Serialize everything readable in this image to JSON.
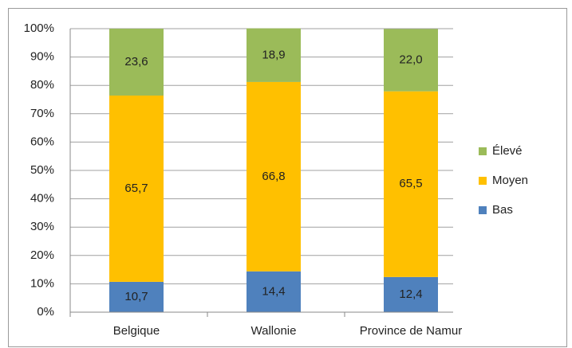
{
  "chart_data": {
    "type": "bar",
    "stacked": true,
    "categories": [
      "Belgique",
      "Wallonie",
      "Province de Namur"
    ],
    "series": [
      {
        "name": "Bas",
        "color": "#4f81bd",
        "values": [
          10.7,
          14.4,
          12.4
        ],
        "value_labels": [
          "10,7",
          "14,4",
          "12,4"
        ]
      },
      {
        "name": "Moyen",
        "color": "#ffc000",
        "values": [
          65.7,
          66.8,
          65.5
        ],
        "value_labels": [
          "65,7",
          "66,8",
          "65,5"
        ]
      },
      {
        "name": "Élevé",
        "color": "#9bbb59",
        "values": [
          23.6,
          18.9,
          22.0
        ],
        "value_labels": [
          "23,6",
          "18,9",
          "22,0"
        ]
      }
    ],
    "ylim": [
      0,
      100
    ],
    "yticks": [
      {
        "value": 0,
        "label": "0%"
      },
      {
        "value": 10,
        "label": "10%"
      },
      {
        "value": 20,
        "label": "20%"
      },
      {
        "value": 30,
        "label": "30%"
      },
      {
        "value": 40,
        "label": "40%"
      },
      {
        "value": 50,
        "label": "50%"
      },
      {
        "value": 60,
        "label": "60%"
      },
      {
        "value": 70,
        "label": "70%"
      },
      {
        "value": 80,
        "label": "80%"
      },
      {
        "value": 90,
        "label": "90%"
      },
      {
        "value": 100,
        "label": "100%"
      }
    ],
    "grid": true,
    "legend": "right"
  }
}
